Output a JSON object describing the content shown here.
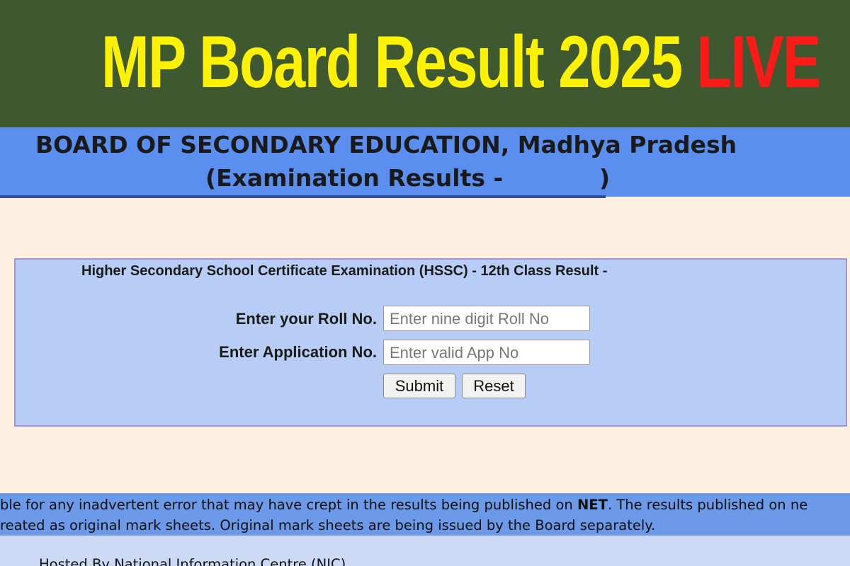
{
  "banner": {
    "title": "MP Board Result 2025",
    "live": "LIVE"
  },
  "header": {
    "line1": "BOARD OF SECONDARY EDUCATION, Madhya Pradesh",
    "line2_start": "(Examination Results -",
    "line2_end": ")"
  },
  "form": {
    "title": "Higher Secondary School Certificate Examination (HSSC) - 12th Class Result -",
    "roll_label": "Enter your Roll No.",
    "roll_placeholder": "Enter nine digit Roll No",
    "app_label": "Enter Application No.",
    "app_placeholder": "Enter valid App No",
    "submit": "Submit",
    "reset": "Reset"
  },
  "disclaimer": {
    "line1_start": "ble for any inadvertent error that may have crept in the results being published on ",
    "line1_bold": "NET",
    "line1_end": ". The results published on ne",
    "line2": "reated as original mark sheets. Original mark sheets are being issued by the Board separately."
  },
  "footer": {
    "hosted": "Hosted By National Information Centre (NIC)"
  }
}
